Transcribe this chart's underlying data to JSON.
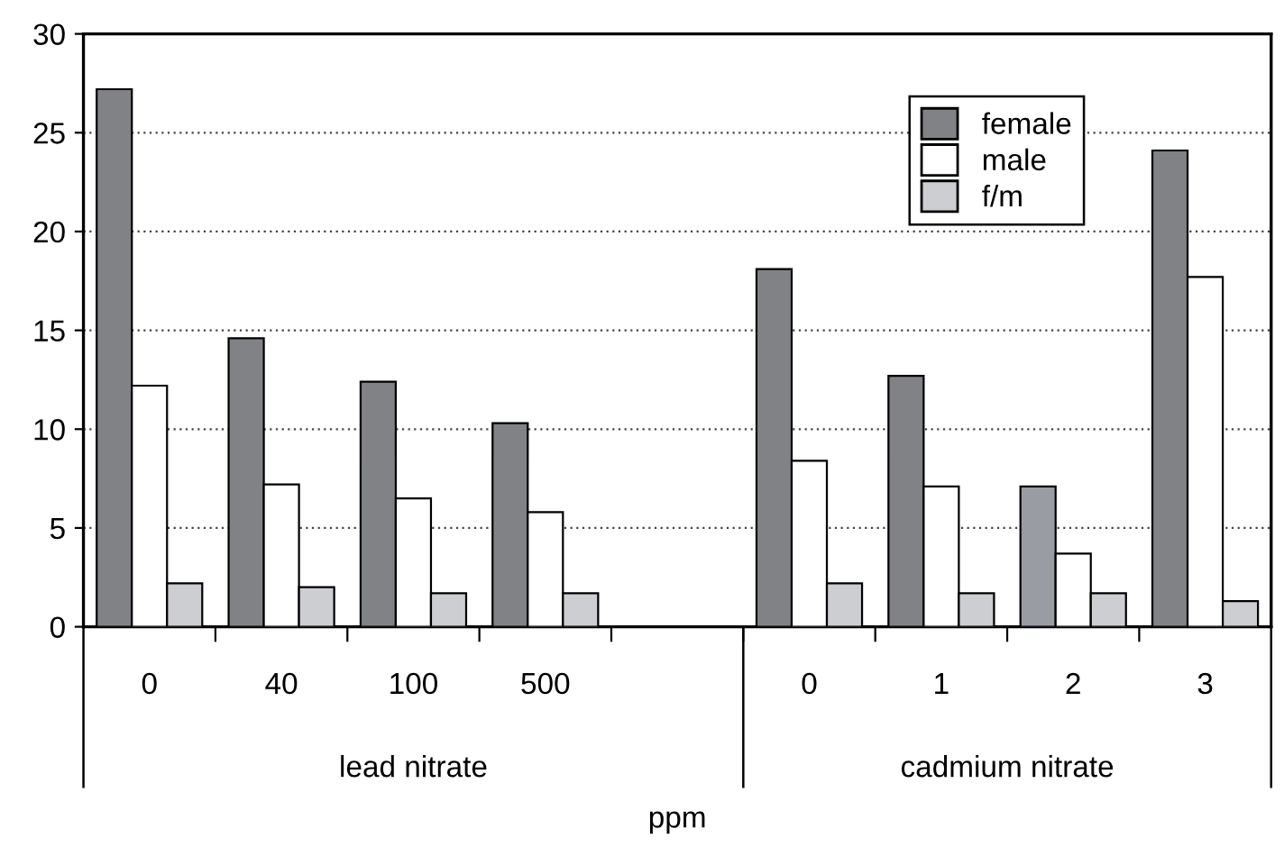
{
  "chart_data": {
    "type": "bar",
    "categories": [
      "0",
      "40",
      "100",
      "500",
      null,
      "0",
      "1",
      "2",
      "3"
    ],
    "series": [
      {
        "name": "female",
        "color": "#808285",
        "colors": [
          "#808285",
          "#808285",
          "#808285",
          "#808285",
          "#808285",
          "#808285",
          "#808285",
          "#9a9ca3",
          "#808285"
        ],
        "values": [
          27.2,
          14.6,
          12.4,
          10.3,
          null,
          18.1,
          12.7,
          7.1,
          24.1
        ]
      },
      {
        "name": "male",
        "color": "#ffffff",
        "values": [
          12.2,
          7.2,
          6.5,
          5.8,
          null,
          8.4,
          7.1,
          3.7,
          17.7
        ]
      },
      {
        "name": "f/m",
        "color": "#cdced2",
        "values": [
          2.2,
          2.0,
          1.7,
          1.7,
          null,
          2.2,
          1.7,
          1.7,
          1.3
        ]
      }
    ],
    "ylim": [
      0,
      30
    ],
    "yticks": [
      0,
      5,
      10,
      15,
      20,
      25,
      30
    ],
    "xlabel": "ppm",
    "annotations": [
      "lead nitrate",
      "cadmium nitrate"
    ],
    "grid": "y",
    "legend": "top right"
  }
}
